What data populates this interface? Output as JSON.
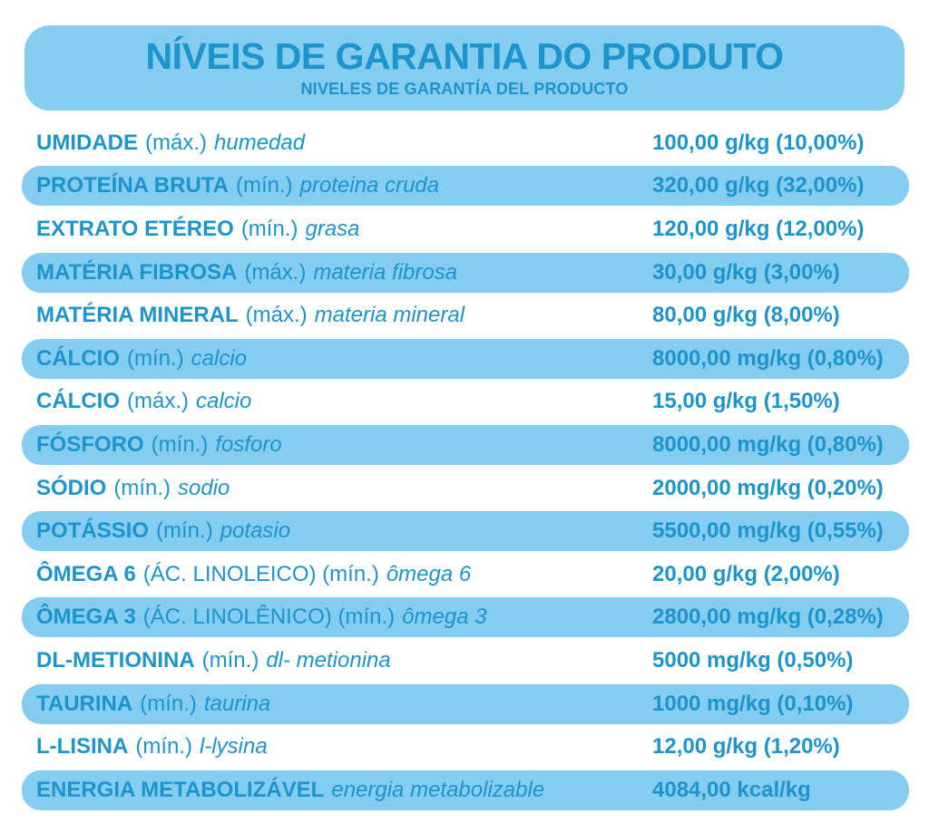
{
  "colors": {
    "band": "#84CCF0",
    "text": "#1C94CD",
    "background": "#FFFFFF"
  },
  "header": {
    "title": "NÍVEIS DE GARANTIA DO PRODUTO",
    "subtitle": "NIVELES DE GARANTÍA DEL PRODUCTO"
  },
  "table": {
    "rows": [
      {
        "name": "UMIDADE",
        "qualifier": "(máx.)",
        "translation": "humedad",
        "value": "100,00 g/kg (10,00%)",
        "highlighted": false
      },
      {
        "name": "PROTEÍNA BRUTA",
        "qualifier": "(mín.)",
        "translation": "proteina cruda",
        "value": "320,00 g/kg (32,00%)",
        "highlighted": true
      },
      {
        "name": "EXTRATO ETÉREO",
        "qualifier": "(mín.)",
        "translation": "grasa",
        "value": "120,00 g/kg (12,00%)",
        "highlighted": false
      },
      {
        "name": "MATÉRIA FIBROSA",
        "qualifier": "(máx.)",
        "translation": "materia fibrosa",
        "value": "30,00 g/kg (3,00%)",
        "highlighted": true
      },
      {
        "name": "MATÉRIA MINERAL",
        "qualifier": "(máx.)",
        "translation": "materia mineral",
        "value": "80,00 g/kg (8,00%)",
        "highlighted": false
      },
      {
        "name": "CÁLCIO",
        "qualifier": "(mín.)",
        "translation": "calcio",
        "value": "8000,00 mg/kg (0,80%)",
        "highlighted": true
      },
      {
        "name": "CÁLCIO",
        "qualifier": "(máx.)",
        "translation": "calcio",
        "value": "15,00 g/kg (1,50%)",
        "highlighted": false
      },
      {
        "name": "FÓSFORO",
        "qualifier": "(mín.)",
        "translation": "fosforo",
        "value": "8000,00 mg/kg (0,80%)",
        "highlighted": true
      },
      {
        "name": "SÓDIO",
        "qualifier": "(mín.)",
        "translation": "sodio",
        "value": "2000,00 mg/kg (0,20%)",
        "highlighted": false
      },
      {
        "name": "POTÁSSIO",
        "qualifier": "(mín.)",
        "translation": "potasio",
        "value": "5500,00 mg/kg (0,55%)",
        "highlighted": true
      },
      {
        "name": "ÔMEGA 6",
        "qualifier": "(ÁC. LINOLEICO) (mín.)",
        "translation": "ômega 6",
        "value": "20,00 g/kg (2,00%)",
        "highlighted": false
      },
      {
        "name": "ÔMEGA 3",
        "qualifier": "(ÁC. LINOLÊNICO) (mín.)",
        "translation": "ômega 3",
        "value": "2800,00 mg/kg (0,28%)",
        "highlighted": true
      },
      {
        "name": "DL-METIONINA",
        "qualifier": "(mín.)",
        "translation": "dl- metionina",
        "value": "5000 mg/kg (0,50%)",
        "highlighted": false
      },
      {
        "name": "TAURINA",
        "qualifier": "(mín.)",
        "translation": "taurina",
        "value": "1000 mg/kg (0,10%)",
        "highlighted": true
      },
      {
        "name": "L-LISINA",
        "qualifier": "(mín.)",
        "translation": "l-lysina",
        "value": "12,00 g/kg (1,20%)",
        "highlighted": false
      },
      {
        "name": "ENERGIA METABOLIZÁVEL",
        "qualifier": "",
        "translation": "energia metabolizable",
        "value": "4084,00 kcal/kg",
        "highlighted": true
      }
    ]
  }
}
